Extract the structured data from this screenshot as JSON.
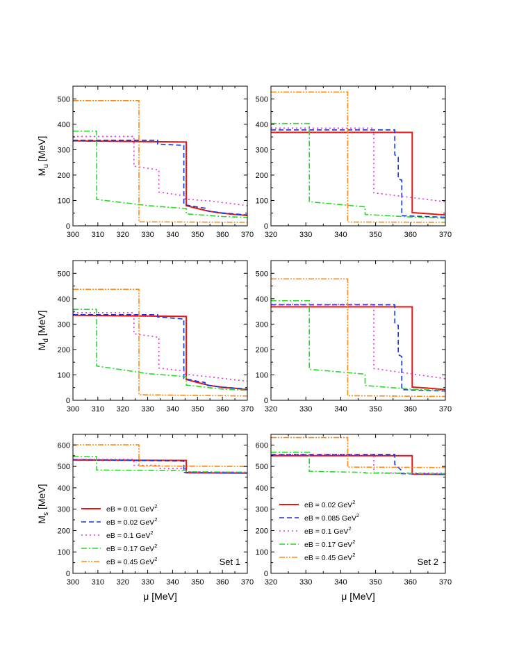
{
  "figure": {
    "series_styles": [
      {
        "color": "#ee1111",
        "dash": ""
      },
      {
        "color": "#1133dd",
        "dash": "7,4"
      },
      {
        "color": "#e033e0",
        "dash": "2,4"
      },
      {
        "color": "#22dd22",
        "dash": "8,3,2,3"
      },
      {
        "color": "#ff8811",
        "dash": "8,2,2,2,2,2"
      }
    ]
  },
  "chart_data": [
    {
      "type": "line",
      "id": "set1-Mu",
      "xlabel": "",
      "ylabel": "M_u [MeV]",
      "ylabel_main": "M",
      "ylabel_sub": "u",
      "ylabel_unit": " [MeV]",
      "xlim": [
        300,
        370
      ],
      "ylim": [
        0,
        550
      ],
      "xticks": [
        300,
        310,
        320,
        330,
        340,
        350,
        360,
        370
      ],
      "yticks": [
        0,
        100,
        200,
        300,
        400,
        500
      ],
      "series": [
        {
          "x": [
            300,
            345.5,
            345.5,
            350,
            355,
            360,
            365,
            370
          ],
          "y": [
            335,
            330,
            80,
            68,
            57,
            50,
            45,
            41
          ]
        },
        {
          "x": [
            300,
            334,
            334,
            344.5,
            344.5,
            350,
            353,
            353,
            360,
            370
          ],
          "y": [
            337,
            337,
            322,
            317,
            84,
            74,
            70,
            60,
            51,
            43
          ]
        },
        {
          "x": [
            300,
            324.5,
            324.5,
            334.5,
            334.5,
            345,
            345,
            355,
            370
          ],
          "y": [
            352,
            352,
            235,
            220,
            133,
            118,
            105,
            98,
            80
          ]
        },
        {
          "x": [
            300,
            309.5,
            309.5,
            330,
            345.5,
            345.5,
            360,
            370
          ],
          "y": [
            373,
            373,
            104,
            80,
            68,
            47,
            37,
            33
          ]
        },
        {
          "x": [
            300,
            326.5,
            326.5,
            370
          ],
          "y": [
            493,
            493,
            16,
            14
          ]
        }
      ]
    },
    {
      "type": "line",
      "id": "set2-Mu",
      "xlabel": "",
      "ylabel": "",
      "xlim": [
        320,
        370
      ],
      "ylim": [
        0,
        550
      ],
      "xticks": [
        320,
        330,
        340,
        350,
        360,
        370
      ],
      "yticks": [
        0,
        100,
        200,
        300,
        400,
        500
      ],
      "series": [
        {
          "x": [
            320,
            360.5,
            360.5,
            365,
            370
          ],
          "y": [
            368,
            368,
            52,
            48,
            43
          ]
        },
        {
          "x": [
            320,
            355.5,
            355.5,
            356.5,
            356.5,
            357.5,
            357.5,
            370
          ],
          "y": [
            378,
            378,
            280,
            270,
            185,
            180,
            40,
            34
          ]
        },
        {
          "x": [
            320,
            349.5,
            349.5,
            370
          ],
          "y": [
            385,
            385,
            130,
            95
          ]
        },
        {
          "x": [
            320,
            331,
            331,
            347,
            347,
            360,
            370
          ],
          "y": [
            403,
            403,
            95,
            75,
            45,
            35,
            30
          ]
        },
        {
          "x": [
            320,
            342,
            342,
            370
          ],
          "y": [
            527,
            527,
            15,
            14
          ]
        }
      ]
    },
    {
      "type": "line",
      "id": "set1-Md",
      "xlabel": "",
      "ylabel": "M_d [MeV]",
      "ylabel_main": "M",
      "ylabel_sub": "d",
      "ylabel_unit": " [MeV]",
      "xlim": [
        300,
        370
      ],
      "ylim": [
        0,
        550
      ],
      "xticks": [
        300,
        310,
        320,
        330,
        340,
        350,
        360,
        370
      ],
      "yticks": [
        0,
        100,
        200,
        300,
        400,
        500
      ],
      "series": [
        {
          "x": [
            300,
            345.5,
            345.5,
            350,
            355,
            360,
            365,
            370
          ],
          "y": [
            335,
            330,
            82,
            70,
            58,
            51,
            47,
            42
          ]
        },
        {
          "x": [
            300,
            334,
            334,
            344.5,
            344.5,
            350,
            353,
            353,
            360,
            370
          ],
          "y": [
            337,
            337,
            328,
            320,
            86,
            75,
            70,
            60,
            52,
            44
          ]
        },
        {
          "x": [
            300,
            324.5,
            324.5,
            334.5,
            334.5,
            345,
            345,
            355,
            370
          ],
          "y": [
            345,
            345,
            262,
            248,
            127,
            115,
            103,
            92,
            75
          ]
        },
        {
          "x": [
            300,
            309.5,
            309.5,
            330,
            345.5,
            345.5,
            360,
            370
          ],
          "y": [
            358,
            358,
            135,
            105,
            93,
            60,
            44,
            39
          ]
        },
        {
          "x": [
            300,
            326.5,
            326.5,
            370
          ],
          "y": [
            437,
            437,
            22,
            17
          ]
        }
      ]
    },
    {
      "type": "line",
      "id": "set2-Md",
      "xlabel": "",
      "ylabel": "",
      "xlim": [
        320,
        370
      ],
      "ylim": [
        0,
        550
      ],
      "xticks": [
        320,
        330,
        340,
        350,
        360,
        370
      ],
      "yticks": [
        0,
        100,
        200,
        300,
        400,
        500
      ],
      "series": [
        {
          "x": [
            320,
            360.5,
            360.5,
            365,
            370
          ],
          "y": [
            368,
            368,
            52,
            48,
            42
          ]
        },
        {
          "x": [
            320,
            355.5,
            355.5,
            356.5,
            356.5,
            357.5,
            357.5,
            370
          ],
          "y": [
            376,
            376,
            305,
            295,
            180,
            172,
            42,
            36
          ]
        },
        {
          "x": [
            320,
            349.5,
            349.5,
            370
          ],
          "y": [
            378,
            378,
            125,
            85
          ]
        },
        {
          "x": [
            320,
            331,
            331,
            347,
            347,
            360,
            370
          ],
          "y": [
            392,
            392,
            122,
            103,
            58,
            44,
            38
          ]
        },
        {
          "x": [
            320,
            342,
            342,
            370
          ],
          "y": [
            478,
            478,
            18,
            15
          ]
        }
      ]
    },
    {
      "type": "line",
      "id": "set1-Ms",
      "xlabel": "μ [MeV]",
      "ylabel": "M_s [MeV]",
      "ylabel_main": "M",
      "ylabel_sub": "s",
      "ylabel_unit": " [MeV]",
      "xlim": [
        300,
        370
      ],
      "ylim": [
        0,
        650
      ],
      "xticks": [
        300,
        310,
        320,
        330,
        340,
        350,
        360,
        370
      ],
      "yticks": [
        0,
        100,
        200,
        300,
        400,
        500,
        600
      ],
      "set_label": "Set 1",
      "legend": [
        "eB = 0.01 GeV",
        "eB = 0.02 GeV",
        "eB = 0.1 GeV",
        "eB = 0.17 GeV",
        "eB = 0.45 GeV"
      ],
      "legend_sup": "2",
      "series": [
        {
          "x": [
            300,
            345.5,
            345.5,
            370
          ],
          "y": [
            530,
            528,
            470,
            469
          ]
        },
        {
          "x": [
            300,
            344.5,
            344.5,
            370
          ],
          "y": [
            532,
            525,
            472,
            470
          ]
        },
        {
          "x": [
            300,
            324.5,
            324.5,
            334.5,
            334.5,
            345,
            345,
            370
          ],
          "y": [
            533,
            533,
            505,
            505,
            490,
            490,
            475,
            473
          ]
        },
        {
          "x": [
            300,
            309.5,
            309.5,
            345.5,
            345.5,
            370
          ],
          "y": [
            546,
            546,
            483,
            480,
            475,
            473
          ]
        },
        {
          "x": [
            300,
            326.5,
            326.5,
            370
          ],
          "y": [
            601,
            601,
            502,
            500
          ]
        }
      ]
    },
    {
      "type": "line",
      "id": "set2-Ms",
      "xlabel": "μ [MeV]",
      "ylabel": "",
      "xlim": [
        320,
        370
      ],
      "ylim": [
        0,
        650
      ],
      "xticks": [
        320,
        330,
        340,
        350,
        360,
        370
      ],
      "yticks": [
        0,
        100,
        200,
        300,
        400,
        500,
        600
      ],
      "set_label": "Set 2",
      "legend": [
        "eB = 0.02 GeV",
        "eB = 0.085 GeV",
        "eB = 0.1 GeV",
        "eB = 0.17 GeV",
        "eB = 0.45 GeV"
      ],
      "legend_sup": "2",
      "series": [
        {
          "x": [
            320,
            360.5,
            360.5,
            370
          ],
          "y": [
            550,
            550,
            464,
            462
          ]
        },
        {
          "x": [
            320,
            355.5,
            355.5,
            357.5,
            357.5,
            370
          ],
          "y": [
            556,
            556,
            510,
            480,
            466,
            464
          ]
        },
        {
          "x": [
            320,
            349.5,
            349.5,
            370
          ],
          "y": [
            555,
            555,
            470,
            468
          ]
        },
        {
          "x": [
            320,
            331,
            331,
            347,
            347,
            370
          ],
          "y": [
            566,
            566,
            477,
            472,
            469,
            466
          ]
        },
        {
          "x": [
            320,
            342,
            342,
            370
          ],
          "y": [
            635,
            635,
            497,
            495
          ]
        }
      ]
    }
  ]
}
